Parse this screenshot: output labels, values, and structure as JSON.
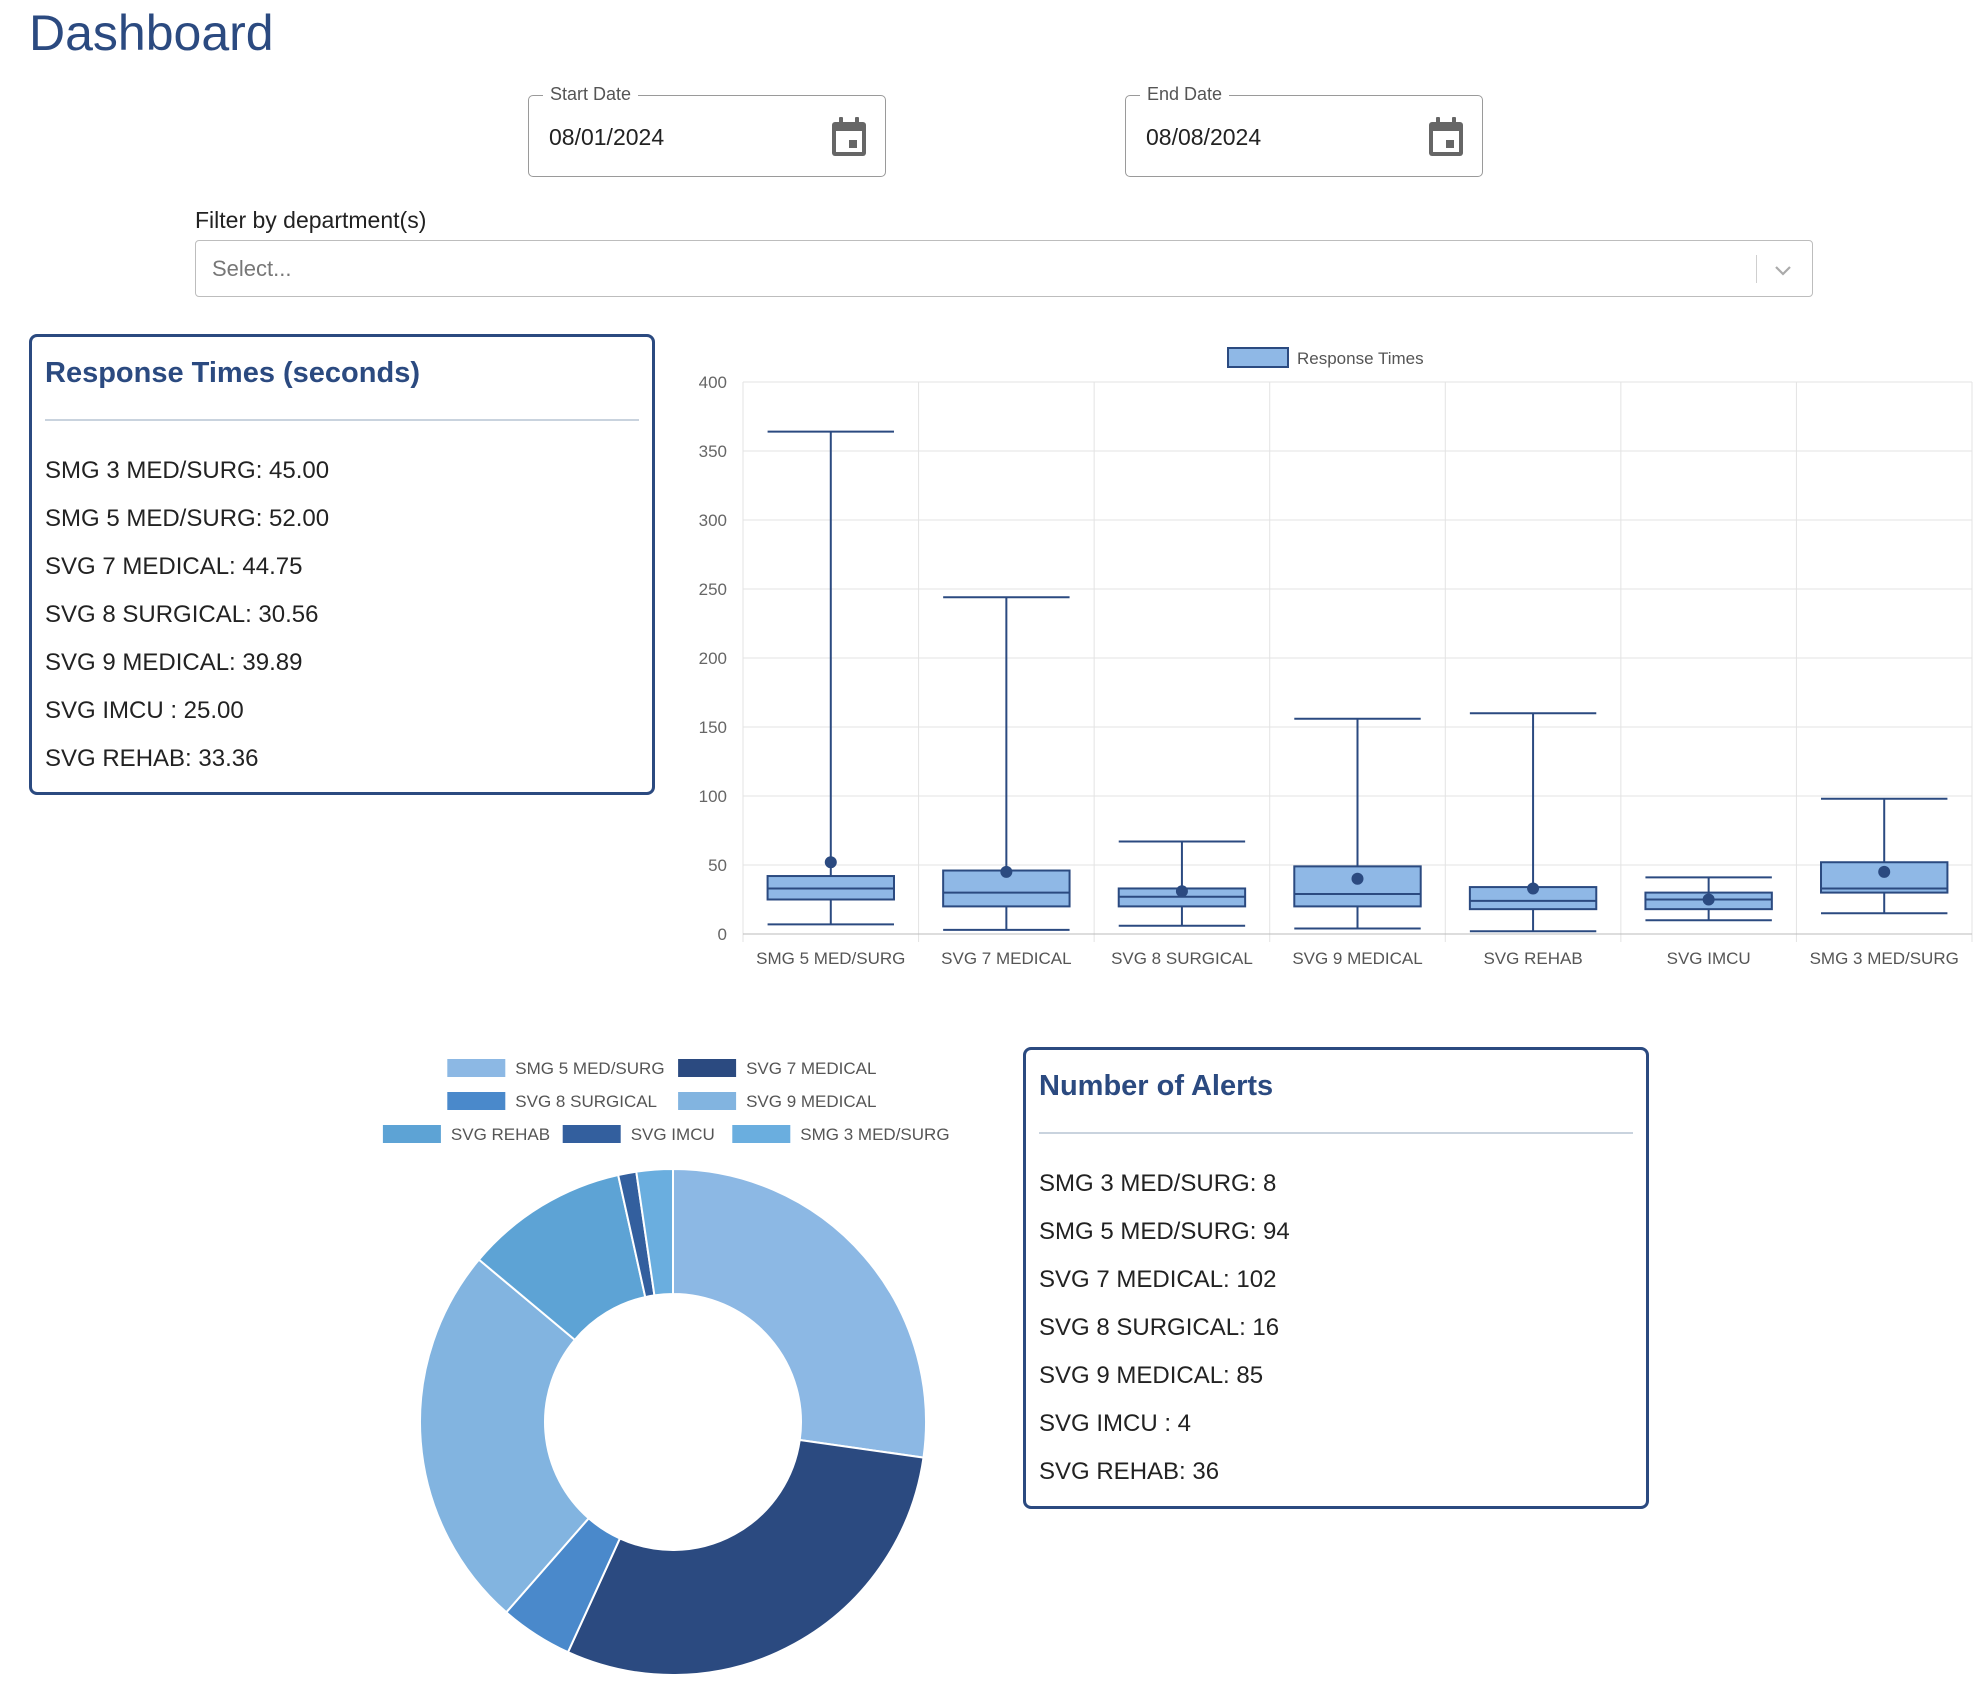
{
  "page": {
    "title": "Dashboard"
  },
  "filters": {
    "start_date": {
      "label": "Start Date",
      "value": "08/01/2024"
    },
    "end_date": {
      "label": "End Date",
      "value": "08/08/2024"
    },
    "department": {
      "label": "Filter by department(s)",
      "placeholder": "Select..."
    }
  },
  "response_times_card": {
    "title": "Response Times (seconds)",
    "rows": [
      "SMG 3 MED/SURG: 45.00",
      "SMG 5 MED/SURG: 52.00",
      "SVG 7 MEDICAL: 44.75",
      "SVG 8 SURGICAL: 30.56",
      "SVG 9 MEDICAL: 39.89",
      "SVG IMCU : 25.00",
      "SVG REHAB: 33.36"
    ]
  },
  "alerts_card": {
    "title": "Number of Alerts",
    "rows": [
      "SMG 3 MED/SURG: 8",
      "SMG 5 MED/SURG: 94",
      "SVG 7 MEDICAL: 102",
      "SVG 8 SURGICAL: 16",
      "SVG 9 MEDICAL: 85",
      "SVG IMCU : 4",
      "SVG REHAB: 36"
    ]
  },
  "icons": {
    "date_picker": "calendar-icon",
    "dropdown": "chevron-down-icon"
  },
  "colors": {
    "primary": "#2b4a80",
    "box_fill": "#8fb8e6",
    "mean_dot": "#2b4a80"
  },
  "chart_data": [
    {
      "type": "box",
      "legend": [
        "Response Times"
      ],
      "legend_position": "top",
      "grid": true,
      "ylim": [
        0,
        400
      ],
      "yticks": [
        0,
        50,
        100,
        150,
        200,
        250,
        300,
        350,
        400
      ],
      "categories": [
        "SMG 5 MED/SURG",
        "SVG 7 MEDICAL",
        "SVG 8 SURGICAL",
        "SVG 9 MEDICAL",
        "SVG REHAB",
        "SVG IMCU",
        "SMG 3 MED/SURG"
      ],
      "boxes": [
        {
          "min": 7,
          "q1": 25,
          "median": 33,
          "q3": 42,
          "max": 364,
          "mean": 52
        },
        {
          "min": 3,
          "q1": 20,
          "median": 30,
          "q3": 46,
          "max": 244,
          "mean": 45
        },
        {
          "min": 6,
          "q1": 20,
          "median": 27,
          "q3": 33,
          "max": 67,
          "mean": 31
        },
        {
          "min": 4,
          "q1": 20,
          "median": 29,
          "q3": 49,
          "max": 156,
          "mean": 40
        },
        {
          "min": 2,
          "q1": 18,
          "median": 24,
          "q3": 34,
          "max": 160,
          "mean": 33
        },
        {
          "min": 10,
          "q1": 18,
          "median": 25,
          "q3": 30,
          "max": 41,
          "mean": 25
        },
        {
          "min": 15,
          "q1": 30,
          "median": 33,
          "q3": 52,
          "max": 98,
          "mean": 45
        }
      ]
    },
    {
      "type": "pie",
      "legend_position": "top",
      "labels": [
        "SMG 5 MED/SURG",
        "SVG 7 MEDICAL",
        "SVG 8 SURGICAL",
        "SVG 9 MEDICAL",
        "SVG REHAB",
        "SVG IMCU",
        "SMG 3 MED/SURG"
      ],
      "values": [
        94,
        102,
        16,
        85,
        36,
        4,
        8
      ],
      "colors": [
        "#8cb8e4",
        "#2b4a80",
        "#4a89cb",
        "#82b4e0",
        "#5da3d5",
        "#335f9e",
        "#6aaedf"
      ]
    }
  ]
}
